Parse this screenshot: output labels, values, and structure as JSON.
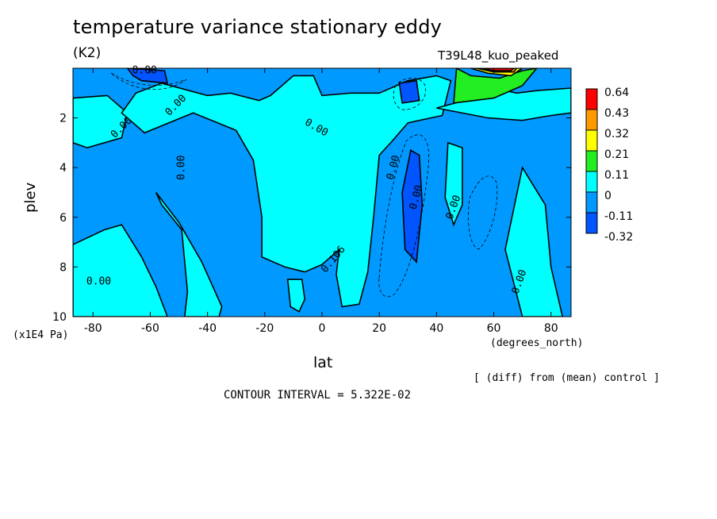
{
  "title": "temperature variance stationary eddy",
  "units": "(K2)",
  "run_label": "T39L48_kuo_peaked",
  "x_axis": {
    "label": "lat",
    "units": "(degrees_north)",
    "ticks": [
      "-80",
      "-60",
      "-40",
      "-20",
      "0",
      "20",
      "40",
      "60",
      "80"
    ]
  },
  "y_axis": {
    "label": "plev",
    "units": "(x1E4 Pa)",
    "ticks": [
      "2",
      "4",
      "6",
      "8",
      "10"
    ]
  },
  "footnote": "[ (diff) from (mean) control ]",
  "contour_interval": "CONTOUR INTERVAL = 5.322E-02",
  "colorbar": {
    "levels": [
      "0.64",
      "0.43",
      "0.32",
      "0.21",
      "0.11",
      "0",
      "-0.11",
      "-0.32"
    ],
    "colors": [
      "#ff0000",
      "#ff9900",
      "#ffff00",
      "#22ee22",
      "#00ffff",
      "#0099ff",
      "#0055ff"
    ]
  },
  "contour_labels": [
    "0.00",
    "0.00",
    "0.00",
    "0.00",
    "0.00",
    "0.00",
    "0.106",
    "0.00",
    "0.00",
    "0.00",
    "0.00"
  ],
  "chart_data": {
    "type": "heatmap",
    "title": "temperature variance stationary eddy",
    "xlabel": "lat",
    "ylabel": "plev",
    "xlim": [
      -87,
      87
    ],
    "ylim": [
      10,
      0
    ],
    "x_ticks": [
      -80,
      -60,
      -40,
      -20,
      0,
      20,
      40,
      60,
      80
    ],
    "y_ticks": [
      2,
      4,
      6,
      8,
      10
    ],
    "color_levels": [
      -0.32,
      -0.11,
      0,
      0.11,
      0.21,
      0.32,
      0.43,
      0.64
    ],
    "contour_interval": 0.05322,
    "regions": [
      {
        "name": "positive",
        "fill": "#00ffff",
        "points": [
          [
            -87,
            1.2
          ],
          [
            -75,
            1.1
          ],
          [
            -68,
            1.8
          ],
          [
            -70,
            2.8
          ],
          [
            -82,
            3.2
          ],
          [
            -87,
            3.0
          ]
        ]
      },
      {
        "name": "positive",
        "fill": "#00ffff",
        "points": [
          [
            -65,
            1.0
          ],
          [
            -56,
            0.6
          ],
          [
            -40,
            1.1
          ],
          [
            -32,
            1.0
          ],
          [
            -22,
            1.3
          ],
          [
            -18,
            1.1
          ],
          [
            -10,
            0.3
          ],
          [
            -3,
            0.3
          ],
          [
            0,
            1.1
          ],
          [
            10,
            1.0
          ],
          [
            20,
            1.0
          ],
          [
            30,
            0.5
          ],
          [
            40,
            0.3
          ],
          [
            45,
            0.5
          ],
          [
            42,
            1.9
          ],
          [
            30,
            2.2
          ],
          [
            24,
            3.0
          ],
          [
            20,
            3.5
          ],
          [
            18,
            6.0
          ],
          [
            16,
            8.2
          ],
          [
            13,
            9.5
          ],
          [
            7,
            9.6
          ],
          [
            5,
            8.3
          ],
          [
            6,
            7.3
          ],
          [
            0,
            7.9
          ],
          [
            -6,
            8.2
          ],
          [
            -13,
            8.0
          ],
          [
            -21,
            7.6
          ],
          [
            -21,
            6.0
          ],
          [
            -24,
            3.7
          ],
          [
            -30,
            2.5
          ],
          [
            -45,
            1.8
          ],
          [
            -62,
            2.6
          ],
          [
            -70,
            1.8
          ]
        ]
      },
      {
        "name": "positive",
        "fill": "#00ffff",
        "points": [
          [
            44,
            3.0
          ],
          [
            49,
            3.2
          ],
          [
            49,
            5.5
          ],
          [
            46,
            6.3
          ],
          [
            43,
            5.2
          ]
        ]
      },
      {
        "name": "positive",
        "fill": "#00ffff",
        "points": [
          [
            -87,
            7.1
          ],
          [
            -76,
            6.5
          ],
          [
            -70,
            6.3
          ],
          [
            -63,
            7.6
          ],
          [
            -58,
            8.8
          ],
          [
            -54,
            10
          ],
          [
            -87,
            10
          ]
        ]
      },
      {
        "name": "positive",
        "fill": "#00ffff",
        "points": [
          [
            -58,
            5.0
          ],
          [
            -50,
            6.2
          ],
          [
            -42,
            7.8
          ],
          [
            -35,
            9.6
          ],
          [
            -36,
            10
          ],
          [
            -48,
            10
          ],
          [
            -47,
            9.0
          ],
          [
            -49,
            6.5
          ],
          [
            -56,
            5.5
          ]
        ]
      },
      {
        "name": "positive",
        "fill": "#00ffff",
        "points": [
          [
            -12,
            8.5
          ],
          [
            -7,
            8.5
          ],
          [
            -6,
            9.3
          ],
          [
            -8,
            9.8
          ],
          [
            -11,
            9.6
          ]
        ]
      },
      {
        "name": "positive",
        "fill": "#00ffff",
        "points": [
          [
            70,
            4.0
          ],
          [
            78,
            5.5
          ],
          [
            80,
            8.0
          ],
          [
            84,
            10
          ],
          [
            70,
            10
          ],
          [
            64,
            7.3
          ]
        ]
      },
      {
        "name": "positive",
        "fill": "#00ffff",
        "points": [
          [
            40,
            1.6
          ],
          [
            53,
            1.2
          ],
          [
            60,
            0.8
          ],
          [
            68,
            1.0
          ],
          [
            75,
            0.9
          ],
          [
            87,
            0.8
          ],
          [
            87,
            1.8
          ],
          [
            80,
            1.9
          ],
          [
            70,
            2.1
          ],
          [
            58,
            2.0
          ]
        ]
      },
      {
        "name": "positive",
        "fill": "#22ee22",
        "points": [
          [
            47,
            0.0
          ],
          [
            52,
            0.3
          ],
          [
            62,
            0.4
          ],
          [
            70,
            0.1
          ],
          [
            75,
            0.0
          ],
          [
            70,
            0.7
          ],
          [
            60,
            1.2
          ],
          [
            53,
            1.3
          ],
          [
            46,
            1.4
          ]
        ]
      },
      {
        "name": "positive",
        "fill": "#ffff00",
        "points": [
          [
            52,
            0.0
          ],
          [
            58,
            0.2
          ],
          [
            66,
            0.3
          ],
          [
            70,
            0.0
          ]
        ]
      },
      {
        "name": "positive",
        "fill": "#ff9900",
        "points": [
          [
            54,
            0.0
          ],
          [
            60,
            0.15
          ],
          [
            67,
            0.15
          ],
          [
            68,
            0.0
          ]
        ]
      },
      {
        "name": "positive",
        "fill": "#ff0000",
        "points": [
          [
            56,
            0.0
          ],
          [
            60,
            0.1
          ],
          [
            66,
            0.1
          ],
          [
            67,
            0.0
          ]
        ]
      },
      {
        "name": "negative",
        "fill": "#0055ff",
        "points": [
          [
            -68,
            0.0
          ],
          [
            -55,
            0.1
          ],
          [
            -54,
            0.6
          ],
          [
            -63,
            0.5
          ],
          [
            -66,
            0.3
          ]
        ]
      },
      {
        "name": "negative",
        "fill": "#0055ff",
        "points": [
          [
            27,
            0.6
          ],
          [
            33,
            0.5
          ],
          [
            34,
            1.3
          ],
          [
            28,
            1.4
          ]
        ]
      },
      {
        "name": "negative",
        "fill": "#0055ff",
        "points": [
          [
            31,
            3.3
          ],
          [
            34,
            3.5
          ],
          [
            35,
            5.5
          ],
          [
            33,
            7.8
          ],
          [
            29,
            7.3
          ],
          [
            28,
            5.0
          ]
        ]
      }
    ]
  }
}
